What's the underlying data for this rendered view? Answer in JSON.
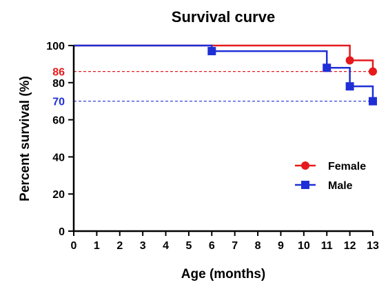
{
  "chart_data": {
    "type": "line",
    "step": true,
    "title": "Survival curve",
    "xlabel": "Age (months)",
    "ylabel": "Percent survival (%)",
    "xlim": [
      0,
      13
    ],
    "ylim": [
      0,
      100
    ],
    "x_ticks": [
      "0",
      "1",
      "2",
      "3",
      "4",
      "5",
      "6",
      "7",
      "8",
      "9",
      "10",
      "11",
      "12",
      "13"
    ],
    "y_ticks": [
      "0",
      "20",
      "40",
      "60",
      "80",
      "100"
    ],
    "grid": false,
    "legend_position": "right",
    "series": [
      {
        "name": "Female",
        "color": "#e41a1c",
        "marker": "circle",
        "x": [
          0,
          12,
          13
        ],
        "y": [
          100,
          92,
          86
        ],
        "markers_x": [
          12,
          13
        ],
        "markers_y": [
          92,
          86
        ]
      },
      {
        "name": "Male",
        "color": "#1f2fd6",
        "marker": "square",
        "x": [
          0,
          6,
          11,
          12,
          13
        ],
        "y": [
          100,
          97,
          88,
          78,
          70
        ],
        "markers_x": [
          6,
          11,
          12,
          13
        ],
        "markers_y": [
          97,
          88,
          78,
          70
        ]
      }
    ],
    "reference_lines": [
      {
        "value": 86,
        "label": "86",
        "color": "#e41a1c",
        "style": "dashed"
      },
      {
        "value": 70,
        "label": "70",
        "color": "#1f2fd6",
        "style": "dashed"
      }
    ]
  }
}
